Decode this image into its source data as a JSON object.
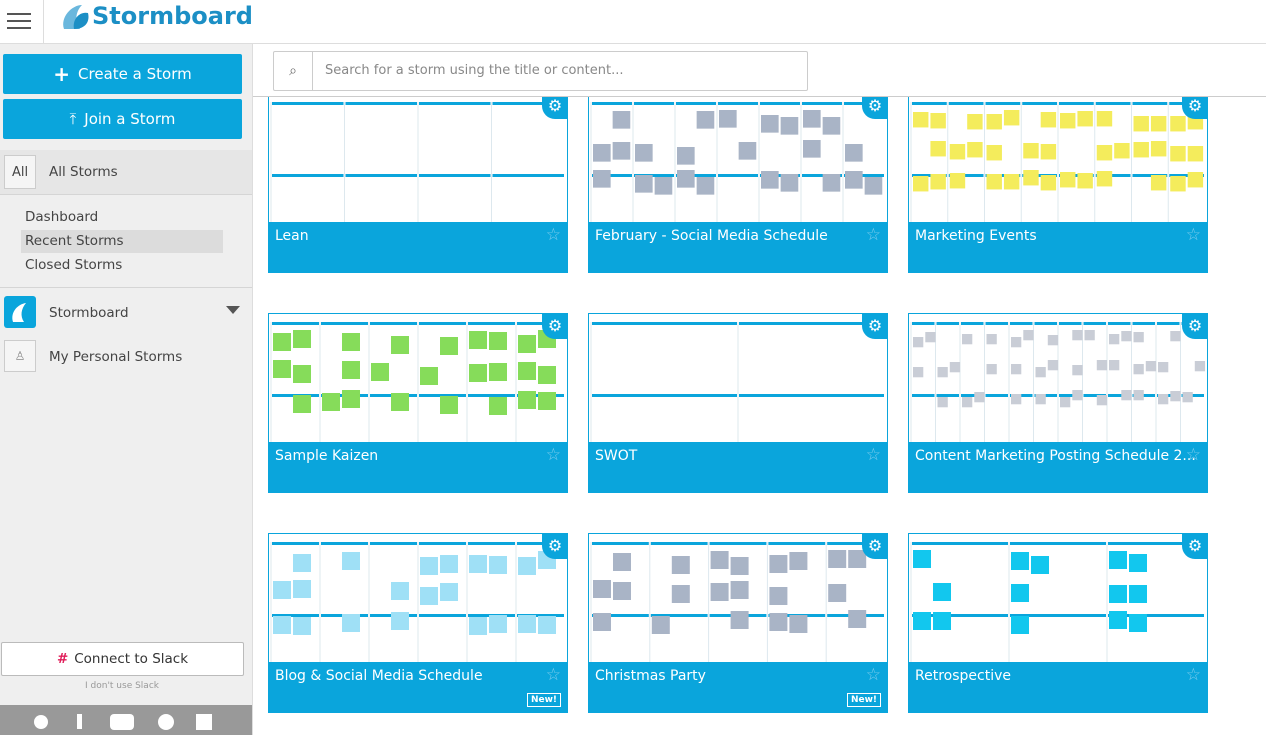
{
  "header": {
    "logo": "Stormboard"
  },
  "sidebar": {
    "create": "Create a Storm",
    "join": "Join a Storm",
    "all_badge": "All",
    "all_storms": "All Storms",
    "links": [
      "Dashboard",
      "Recent Storms",
      "Closed Storms"
    ],
    "orgs": [
      "Stormboard",
      "My Personal Storms"
    ],
    "slack": "Connect to Slack",
    "no_slack": "I don't use Slack"
  },
  "search": {
    "placeholder": "Search for a storm using the title or content..."
  },
  "storms": [
    {
      "title": "Lean"
    },
    {
      "title": "February - Social Media Schedule"
    },
    {
      "title": "Marketing Events"
    },
    {
      "title": "Sample Kaizen"
    },
    {
      "title": "SWOT"
    },
    {
      "title": "Content Marketing Posting Schedule 2..."
    },
    {
      "title": "Blog & Social Media Schedule",
      "badge": "New!"
    },
    {
      "title": "Christmas Party",
      "badge": "New!"
    },
    {
      "title": "Retrospective"
    }
  ]
}
